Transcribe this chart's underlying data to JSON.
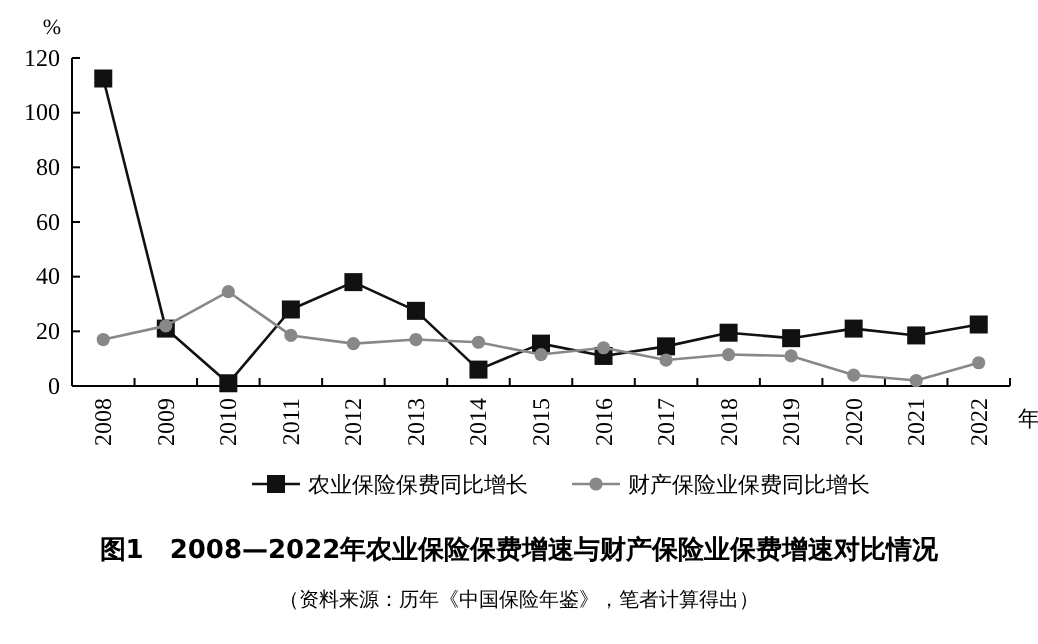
{
  "chart_data": {
    "type": "line",
    "title": "图1　2008—2022年农业保险保费增速与财产保险业保费增速对比情况",
    "annotations": [
      "（资料来源：历年《中国保险年鉴》，笔者计算得出）"
    ],
    "xlabel": "年",
    "ylabel": "%",
    "categories": [
      "2008",
      "2009",
      "2010",
      "2011",
      "2012",
      "2013",
      "2014",
      "2015",
      "2016",
      "2017",
      "2018",
      "2019",
      "2020",
      "2021",
      "2022"
    ],
    "series": [
      {
        "name": "农业保险保费同比增长",
        "color": "#111111",
        "marker": "square",
        "values": [
          112.5,
          21,
          1,
          28,
          38,
          27.5,
          6,
          15.5,
          11,
          14.5,
          19.5,
          17.5,
          21,
          18.5,
          22.5
        ]
      },
      {
        "name": "财产保险业保费同比增长",
        "color": "#888888",
        "marker": "circle",
        "values": [
          17,
          22,
          34.5,
          18.5,
          15.5,
          17,
          16,
          11.5,
          14,
          9.5,
          11.5,
          11,
          4,
          2,
          8.5
        ]
      }
    ],
    "ylim": [
      0,
      120
    ],
    "yticks": [
      0,
      20,
      40,
      60,
      80,
      100,
      120
    ],
    "grid": false,
    "legend": "bottom",
    "line_style": "solid"
  }
}
